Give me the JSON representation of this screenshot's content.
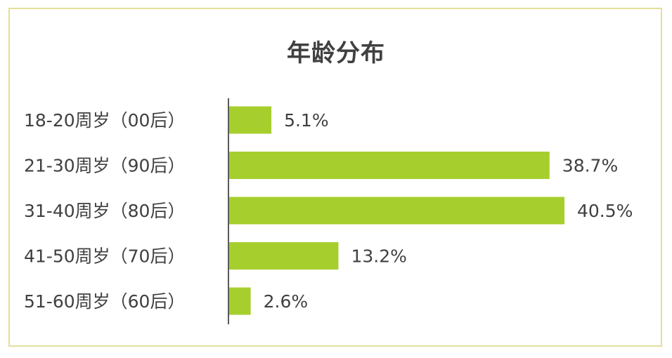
{
  "chart_data": {
    "type": "bar",
    "orientation": "horizontal",
    "title": "年龄分布",
    "categories": [
      "18-20周岁（00后）",
      "21-30周岁（90后）",
      "31-40周岁（80后）",
      "41-50周岁（70后）",
      "51-60周岁（60后）"
    ],
    "values": [
      5.1,
      38.7,
      40.5,
      13.2,
      2.6
    ],
    "value_labels": [
      "5.1%",
      "38.7%",
      "40.5%",
      "13.2%",
      "2.6%"
    ],
    "unit": "%",
    "xlim": [
      0,
      40.5
    ],
    "grid": false,
    "legend": "none",
    "bar_color": "#a6cf2e",
    "frame_color": "#e3df9b"
  }
}
